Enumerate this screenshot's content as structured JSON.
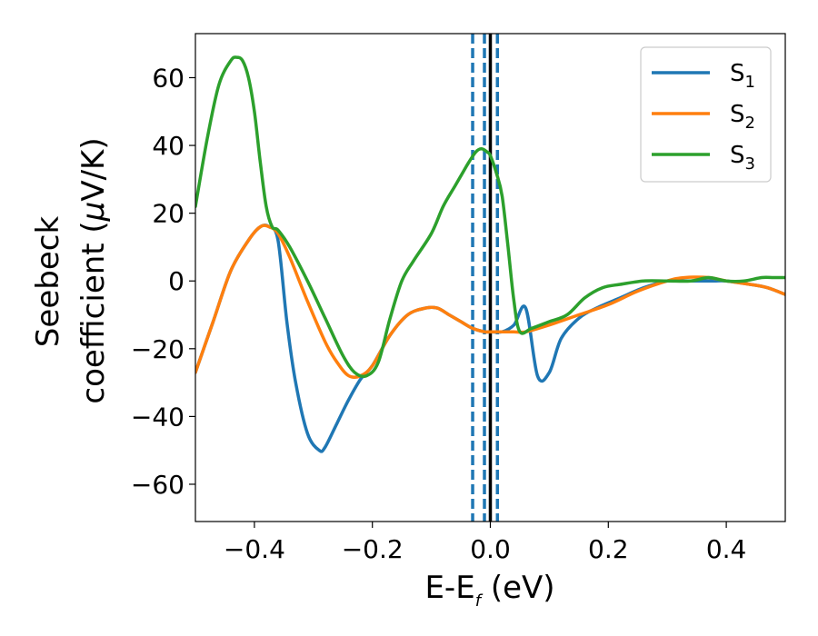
{
  "chart_data": {
    "type": "line",
    "xlabel": "E-E",
    "xlabel_sub": "f",
    "xlabel_unit": " (eV)",
    "ylabel_line1": "Seebeck",
    "ylabel_line2_prefix": "coefficient  (",
    "ylabel_mu": "μ",
    "ylabel_line2_suffix": "V/K)",
    "xlim": [
      -0.5,
      0.5
    ],
    "ylim": [
      -71,
      73
    ],
    "xticks": [
      -0.4,
      -0.2,
      0.0,
      0.2,
      0.4
    ],
    "xtick_labels": [
      "−0.4",
      "−0.2",
      "0.0",
      "0.2",
      "0.4"
    ],
    "yticks": [
      -60,
      -40,
      -20,
      0,
      20,
      40,
      60
    ],
    "ytick_labels": [
      "−60",
      "−40",
      "−20",
      "0",
      "20",
      "40",
      "60"
    ],
    "legend_position": "upper-right",
    "vlines": [
      {
        "x": 0.0,
        "style": "solid",
        "color": "#000000"
      },
      {
        "x": -0.03,
        "style": "dashed",
        "color": "#1f77b4"
      },
      {
        "x": -0.01,
        "style": "dashed",
        "color": "#1f77b4"
      },
      {
        "x": 0.012,
        "style": "dashed",
        "color": "#1f77b4"
      }
    ],
    "series": [
      {
        "name": "S",
        "sub": "1",
        "color": "#1f77b4",
        "x": [
          -0.5,
          -0.47,
          -0.44,
          -0.41,
          -0.39,
          -0.375,
          -0.36,
          -0.345,
          -0.33,
          -0.31,
          -0.29,
          -0.28,
          -0.26,
          -0.24,
          -0.22,
          -0.2,
          -0.17,
          -0.14,
          -0.11,
          -0.09,
          -0.07,
          -0.05,
          -0.03,
          -0.01,
          0.0,
          0.02,
          0.04,
          0.06,
          0.08,
          0.1,
          0.12,
          0.15,
          0.18,
          0.22,
          0.26,
          0.3,
          0.33,
          0.36,
          0.38,
          0.4,
          0.44,
          0.47,
          0.5
        ],
        "y": [
          -27,
          -12,
          3,
          12,
          16,
          16,
          12,
          -12,
          -30,
          -45,
          -50,
          -49,
          -42,
          -35,
          -29,
          -25,
          -16,
          -10,
          -8,
          -8,
          -10,
          -12,
          -14,
          -15,
          -15,
          -15,
          -13,
          -8,
          -28,
          -27,
          -17,
          -11,
          -8,
          -5,
          -2,
          0,
          0,
          0,
          0,
          0,
          -1,
          -2,
          -4
        ]
      },
      {
        "name": "S",
        "sub": "2",
        "color": "#ff7f0e",
        "x": [
          -0.5,
          -0.47,
          -0.44,
          -0.41,
          -0.39,
          -0.375,
          -0.36,
          -0.34,
          -0.31,
          -0.28,
          -0.26,
          -0.24,
          -0.22,
          -0.2,
          -0.17,
          -0.14,
          -0.11,
          -0.09,
          -0.07,
          -0.05,
          -0.03,
          -0.01,
          0.0,
          0.02,
          0.04,
          0.06,
          0.1,
          0.15,
          0.2,
          0.25,
          0.3,
          0.33,
          0.37,
          0.4,
          0.44,
          0.47,
          0.5
        ],
        "y": [
          -27,
          -12,
          3,
          12,
          16,
          16,
          14,
          7,
          -6,
          -18,
          -24,
          -28,
          -28,
          -25,
          -16,
          -10,
          -8,
          -8,
          -10,
          -12,
          -14,
          -15,
          -15,
          -15,
          -15,
          -15,
          -13,
          -10,
          -7,
          -3,
          0,
          1,
          1,
          0,
          -1,
          -2,
          -4
        ]
      },
      {
        "name": "S",
        "sub": "3",
        "color": "#2ca02c",
        "x": [
          -0.5,
          -0.48,
          -0.46,
          -0.44,
          -0.43,
          -0.42,
          -0.41,
          -0.4,
          -0.39,
          -0.38,
          -0.37,
          -0.36,
          -0.34,
          -0.31,
          -0.28,
          -0.25,
          -0.23,
          -0.21,
          -0.19,
          -0.17,
          -0.15,
          -0.13,
          -0.1,
          -0.08,
          -0.06,
          -0.04,
          -0.025,
          -0.015,
          -0.005,
          0.0,
          0.01,
          0.02,
          0.03,
          0.04,
          0.05,
          0.07,
          0.1,
          0.13,
          0.16,
          0.19,
          0.22,
          0.26,
          0.3,
          0.34,
          0.37,
          0.4,
          0.43,
          0.46,
          0.48,
          0.5
        ],
        "y": [
          22,
          42,
          58,
          65,
          66,
          65,
          60,
          50,
          35,
          22,
          16,
          15,
          10,
          0,
          -11,
          -22,
          -27,
          -28,
          -24,
          -11,
          0,
          6,
          14,
          22,
          28,
          34,
          38,
          39,
          38,
          37,
          32,
          25,
          10,
          -6,
          -15,
          -14,
          -12,
          -10,
          -5,
          -2,
          -1,
          0,
          0,
          0,
          1,
          0,
          0,
          1,
          1,
          1
        ]
      }
    ]
  }
}
